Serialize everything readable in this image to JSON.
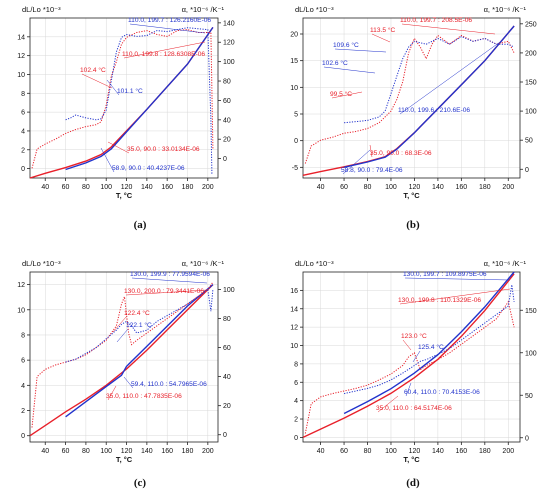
{
  "colors": {
    "red": "#e8202a",
    "blue": "#2233cc",
    "axis": "#222222",
    "grid": "#d8d8d8"
  },
  "chart_data": [
    {
      "type": "line",
      "panel_label": "(a)",
      "xlabel": "T, °C",
      "ylabel_left": "dL/Lo *10⁻³",
      "ylabel_right": "α, *10⁻⁶ /K⁻¹",
      "xlim": [
        25,
        210
      ],
      "ylim_left": [
        -1,
        16
      ],
      "ylim_right": [
        -20,
        145
      ],
      "xticks": [
        "40",
        "60",
        "80",
        "100",
        "120",
        "140",
        "160",
        "180",
        "200"
      ],
      "yticks_left": [
        "0",
        "2",
        "4",
        "6",
        "8",
        "10",
        "12",
        "14"
      ],
      "yticks_right": [
        "0",
        "20",
        "40",
        "60",
        "80",
        "100",
        "120",
        "140"
      ],
      "series": [
        {
          "axis": "left",
          "color": "red",
          "style": "solid",
          "x": [
            25,
            40,
            60,
            80,
            95,
            105,
            120,
            140,
            160,
            180,
            205
          ],
          "y": [
            -1.0,
            -0.5,
            0.1,
            0.8,
            1.5,
            2.3,
            4.0,
            6.3,
            8.7,
            11.1,
            15.0
          ]
        },
        {
          "axis": "left",
          "color": "blue",
          "style": "solid",
          "x": [
            60,
            80,
            95,
            105,
            120,
            140,
            160,
            180,
            205
          ],
          "y": [
            -0.1,
            0.6,
            1.3,
            2.1,
            3.9,
            6.3,
            8.7,
            11.1,
            15.0
          ]
        },
        {
          "axis": "right",
          "color": "red",
          "style": "dotted",
          "x": [
            27,
            32,
            40,
            50,
            60,
            70,
            80,
            90,
            95,
            100,
            105,
            110,
            115,
            120,
            130,
            140,
            150,
            160,
            170,
            180,
            190,
            200,
            203,
            205
          ],
          "y": [
            -10,
            10,
            15,
            20,
            26,
            30,
            33,
            35,
            38,
            55,
            85,
            100,
            118,
            125,
            130,
            132,
            128,
            126,
            132,
            133,
            130,
            130,
            130,
            10
          ]
        },
        {
          "axis": "right",
          "color": "blue",
          "style": "dotted",
          "x": [
            60,
            65,
            70,
            80,
            90,
            95,
            100,
            105,
            110,
            115,
            120,
            130,
            140,
            150,
            160,
            170,
            180,
            190,
            200,
            203,
            204,
            205
          ],
          "y": [
            40,
            42,
            45,
            42,
            40,
            41,
            50,
            80,
            110,
            125,
            128,
            126,
            127,
            132,
            131,
            133,
            135,
            134,
            133,
            40,
            -15,
            -15
          ]
        }
      ],
      "annotations": [
        {
          "text": "110.0, 199.7 : 126.2160E-06",
          "color": "blue"
        },
        {
          "text": "110.0, 199.8 : 128.6308E-06",
          "color": "red"
        },
        {
          "text": "102.4 °C",
          "color": "red"
        },
        {
          "text": "101.1 °C",
          "color": "blue"
        },
        {
          "text": "35.0, 90.0 : 33.0134E-06",
          "color": "red"
        },
        {
          "text": "58.9, 90.0 : 40.4237E-06",
          "color": "blue"
        }
      ]
    },
    {
      "type": "line",
      "panel_label": "(b)",
      "xlabel": "T, °C",
      "ylabel_left": "dL/Lo *10⁻³",
      "ylabel_right": "α, *10⁻⁶ /K⁻¹",
      "xlim": [
        25,
        210
      ],
      "ylim_left": [
        -7,
        23
      ],
      "ylim_right": [
        -15,
        260
      ],
      "xticks": [
        "40",
        "60",
        "80",
        "100",
        "120",
        "140",
        "160",
        "180",
        "200"
      ],
      "yticks_left": [
        "-5",
        "0",
        "5",
        "10",
        "15",
        "20"
      ],
      "yticks_right": [
        "0",
        "50",
        "100",
        "150",
        "200",
        "250"
      ],
      "series": [
        {
          "axis": "left",
          "color": "red",
          "style": "solid",
          "x": [
            25,
            40,
            60,
            80,
            95,
            105,
            120,
            140,
            160,
            180,
            205
          ],
          "y": [
            -6.5,
            -5.8,
            -4.9,
            -3.9,
            -3.0,
            -1.5,
            1.5,
            6.0,
            10.5,
            15.0,
            21.5
          ]
        },
        {
          "axis": "left",
          "color": "blue",
          "style": "solid",
          "x": [
            60,
            80,
            95,
            105,
            120,
            140,
            160,
            180,
            205
          ],
          "y": [
            -5.0,
            -4.0,
            -3.1,
            -1.6,
            1.5,
            6.0,
            10.5,
            15.0,
            21.5
          ]
        },
        {
          "axis": "right",
          "color": "red",
          "style": "dotted",
          "x": [
            27,
            32,
            40,
            50,
            60,
            70,
            80,
            90,
            95,
            100,
            105,
            110,
            115,
            120,
            125,
            130,
            135,
            140,
            150,
            160,
            170,
            180,
            190,
            200,
            205
          ],
          "y": [
            10,
            40,
            50,
            55,
            62,
            65,
            70,
            80,
            90,
            100,
            120,
            150,
            200,
            225,
            210,
            190,
            215,
            230,
            215,
            230,
            220,
            225,
            215,
            220,
            200
          ]
        },
        {
          "axis": "right",
          "color": "blue",
          "style": "dotted",
          "x": [
            60,
            70,
            80,
            90,
            95,
            100,
            105,
            110,
            115,
            120,
            130,
            140,
            150,
            160,
            170,
            180,
            190,
            200,
            205
          ],
          "y": [
            80,
            82,
            84,
            90,
            100,
            130,
            160,
            190,
            210,
            220,
            215,
            225,
            215,
            228,
            220,
            225,
            215,
            215,
            210
          ]
        }
      ],
      "annotations": [
        {
          "text": "110.0, 199.7 : 208.5E-06",
          "color": "red"
        },
        {
          "text": "113.5 °C",
          "color": "red"
        },
        {
          "text": "109.6 °C",
          "color": "blue"
        },
        {
          "text": "102.6 °C",
          "color": "blue"
        },
        {
          "text": "99.5 °C",
          "color": "red"
        },
        {
          "text": "110.0, 199.6 : 210.6E-06",
          "color": "blue"
        },
        {
          "text": "35.0, 90.0 : 68.3E-06",
          "color": "red"
        },
        {
          "text": "58.8, 90.0 : 79.4E-06",
          "color": "blue"
        }
      ]
    },
    {
      "type": "line",
      "panel_label": "(c)",
      "xlabel": "T, °C",
      "ylabel_left": "dL/Lo *10⁻³",
      "ylabel_right": "α, *10⁻⁶ /K⁻¹",
      "xlim": [
        25,
        210
      ],
      "ylim_left": [
        -0.5,
        13
      ],
      "ylim_right": [
        -5,
        112
      ],
      "xticks": [
        "40",
        "60",
        "80",
        "100",
        "120",
        "140",
        "160",
        "180",
        "200"
      ],
      "yticks_left": [
        "0",
        "2",
        "4",
        "6",
        "8",
        "10",
        "12"
      ],
      "yticks_right": [
        "0",
        "20",
        "40",
        "60",
        "80",
        "100"
      ],
      "series": [
        {
          "axis": "left",
          "color": "red",
          "style": "solid",
          "x": [
            25,
            40,
            60,
            80,
            100,
            120,
            140,
            160,
            180,
            205
          ],
          "y": [
            0.0,
            0.8,
            1.9,
            2.9,
            4.0,
            5.3,
            6.8,
            8.4,
            10.0,
            12.0
          ]
        },
        {
          "axis": "left",
          "color": "blue",
          "style": "solid",
          "x": [
            60,
            80,
            100,
            115,
            120,
            140,
            160,
            180,
            205
          ],
          "y": [
            1.5,
            2.7,
            3.9,
            4.8,
            5.5,
            7.1,
            8.7,
            10.3,
            12.0
          ]
        },
        {
          "axis": "right",
          "color": "red",
          "style": "dotted",
          "x": [
            27,
            32,
            40,
            50,
            60,
            70,
            80,
            90,
            100,
            105,
            110,
            115,
            118,
            122,
            125,
            130,
            140,
            150,
            160,
            170,
            180,
            190,
            200,
            205
          ],
          "y": [
            5,
            40,
            45,
            48,
            50,
            52,
            55,
            60,
            65,
            70,
            75,
            90,
            95,
            70,
            62,
            65,
            70,
            75,
            80,
            85,
            90,
            95,
            100,
            105
          ]
        },
        {
          "axis": "right",
          "color": "blue",
          "style": "dotted",
          "x": [
            60,
            70,
            80,
            90,
            100,
            110,
            115,
            120,
            125,
            130,
            140,
            150,
            160,
            170,
            180,
            190,
            200,
            203,
            205
          ],
          "y": [
            50,
            52,
            56,
            60,
            66,
            72,
            76,
            78,
            75,
            70,
            72,
            78,
            82,
            86,
            90,
            95,
            100,
            85,
            100
          ]
        }
      ],
      "annotations": [
        {
          "text": "130.0, 199.9 : 77.9594E-06",
          "color": "blue"
        },
        {
          "text": "130.0, 200.0 : 79.3441E-06",
          "color": "red"
        },
        {
          "text": "122.4 °C",
          "color": "red"
        },
        {
          "text": "122.1 °C",
          "color": "blue"
        },
        {
          "text": "59.4, 110.0 : 54.7965E-06",
          "color": "blue"
        },
        {
          "text": "35.0, 110.0 : 47.7835E-06",
          "color": "red"
        }
      ]
    },
    {
      "type": "line",
      "panel_label": "(d)",
      "xlabel": "T, °C",
      "ylabel_left": "dL/Lo *10⁻³",
      "ylabel_right": "α, *10⁻⁶ /K⁻¹",
      "xlim": [
        25,
        210
      ],
      "ylim_left": [
        -0.5,
        18
      ],
      "ylim_right": [
        -5,
        195
      ],
      "xticks": [
        "40",
        "60",
        "80",
        "100",
        "120",
        "140",
        "160",
        "180",
        "200"
      ],
      "yticks_left": [
        "0",
        "2",
        "4",
        "6",
        "8",
        "10",
        "12",
        "14",
        "16"
      ],
      "yticks_right": [
        "0",
        "50",
        "100",
        "150"
      ],
      "series": [
        {
          "axis": "left",
          "color": "red",
          "style": "solid",
          "x": [
            25,
            40,
            60,
            80,
            100,
            120,
            140,
            160,
            180,
            205
          ],
          "y": [
            0.0,
            0.9,
            2.1,
            3.4,
            4.8,
            6.5,
            8.5,
            11.0,
            13.8,
            17.8
          ]
        },
        {
          "axis": "left",
          "color": "blue",
          "style": "solid",
          "x": [
            60,
            80,
            100,
            120,
            140,
            160,
            180,
            205
          ],
          "y": [
            2.6,
            3.9,
            5.3,
            7.0,
            9.0,
            11.5,
            14.2,
            18.0
          ]
        },
        {
          "axis": "right",
          "color": "red",
          "style": "dotted",
          "x": [
            27,
            32,
            40,
            50,
            60,
            70,
            80,
            90,
            100,
            110,
            115,
            120,
            125,
            130,
            140,
            150,
            160,
            170,
            180,
            190,
            200,
            205
          ],
          "y": [
            5,
            40,
            48,
            52,
            55,
            58,
            62,
            68,
            75,
            85,
            95,
            100,
            80,
            85,
            92,
            100,
            110,
            120,
            130,
            140,
            160,
            130
          ]
        },
        {
          "axis": "right",
          "color": "blue",
          "style": "dotted",
          "x": [
            60,
            70,
            80,
            90,
            100,
            110,
            120,
            125,
            130,
            140,
            150,
            160,
            170,
            180,
            190,
            200,
            203,
            205
          ],
          "y": [
            52,
            55,
            58,
            62,
            68,
            76,
            85,
            90,
            92,
            98,
            105,
            115,
            125,
            135,
            145,
            155,
            180,
            160
          ]
        }
      ],
      "annotations": [
        {
          "text": "130.0, 199.7 : 109.8975E-06",
          "color": "blue"
        },
        {
          "text": "130.0, 199.8 : 110.1329E-06",
          "color": "red"
        },
        {
          "text": "123.0 °C",
          "color": "red"
        },
        {
          "text": "125.4 °C",
          "color": "blue"
        },
        {
          "text": "60.4, 110.0 : 70.4153E-06",
          "color": "blue"
        },
        {
          "text": "35.0, 110.0 : 64.5174E-06",
          "color": "red"
        }
      ]
    }
  ]
}
